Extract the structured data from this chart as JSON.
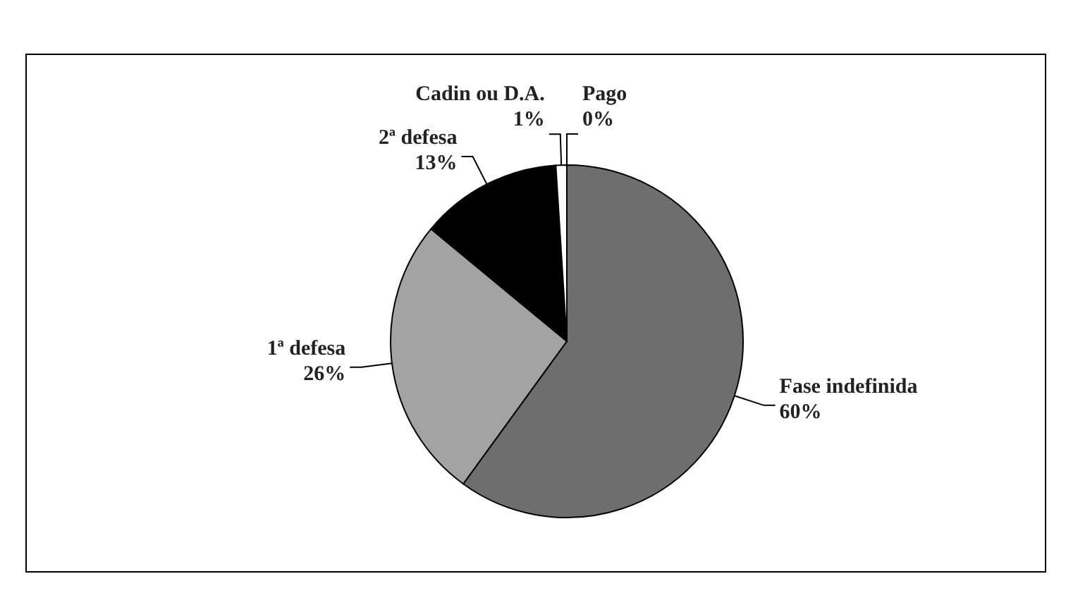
{
  "chart_data": {
    "type": "pie",
    "categories": [
      "Fase indefinida",
      "1ª defesa",
      "2ª defesa",
      "Cadin ou D.A.",
      "Pago"
    ],
    "values": [
      60,
      26,
      13,
      1,
      0
    ],
    "value_labels": [
      "60%",
      "26%",
      "13%",
      "1%",
      "0%"
    ],
    "colors": [
      "#6e6e6e",
      "#a3a3a3",
      "#000000",
      "#ffffff",
      "#ffffff"
    ],
    "legend": false
  }
}
